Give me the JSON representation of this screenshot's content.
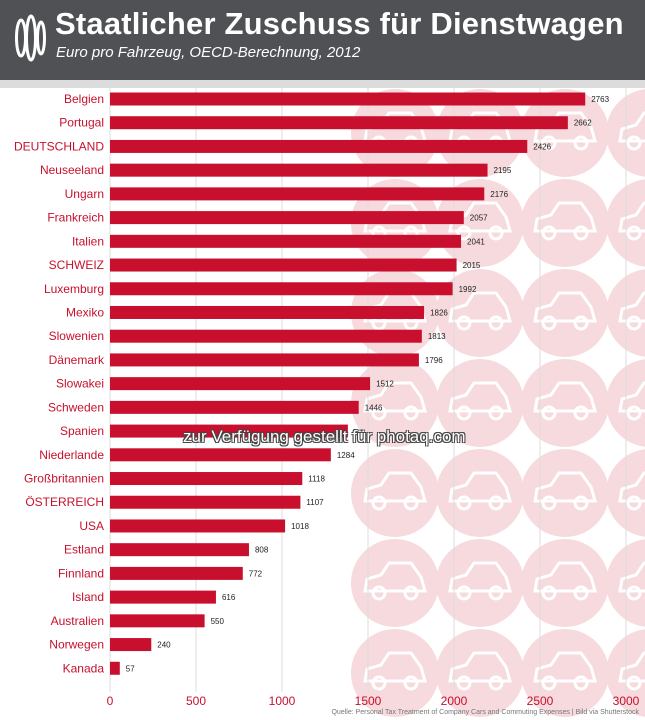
{
  "colors": {
    "header_bg": "#4f5154",
    "bar": "#c8102e",
    "label": "#c8102e",
    "background": "#ffffff"
  },
  "logo_icon": "oecd-logo-icon",
  "header": {
    "title": "Staatlicher Zuschuss für Dienstwagen",
    "subtitle": "Euro pro Fahrzeug, OECD-Berechnung, 2012"
  },
  "watermark": "zur Verfügung gestellt für photaq.com",
  "source": "Quelle: Personal Tax Treatment of Company Cars and Commuting Expenses | Bild via Shutterstock",
  "chart_data": {
    "type": "bar",
    "orientation": "horizontal",
    "title": "Staatlicher Zuschuss für Dienstwagen",
    "subtitle": "Euro pro Fahrzeug, OECD-Berechnung, 2012",
    "categories": [
      "Belgien",
      "Portugal",
      "DEUTSCHLAND",
      "Neuseeland",
      "Ungarn",
      "Frankreich",
      "Italien",
      "SCHWEIZ",
      "Luxemburg",
      "Mexiko",
      "Slowenien",
      "Dänemark",
      "Slowakei",
      "Schweden",
      "Spanien",
      "Niederlande",
      "Großbritannien",
      "ÖSTERREICH",
      "USA",
      "Estland",
      "Finnland",
      "Island",
      "Australien",
      "Norwegen",
      "Kanada"
    ],
    "values": [
      2763,
      2662,
      2426,
      2195,
      2176,
      2057,
      2041,
      2015,
      1992,
      1826,
      1813,
      1796,
      1512,
      1446,
      1383,
      1284,
      1118,
      1107,
      1018,
      808,
      772,
      616,
      550,
      240,
      57
    ],
    "value_labels": [
      "2763",
      "2662",
      "2426",
      "2195",
      "2176",
      "2057",
      "2041",
      "2015",
      "1992",
      "1826",
      "1813",
      "1796",
      "1512",
      "1446",
      "",
      "1284",
      "1118",
      "1107",
      "1018",
      "808",
      "772",
      "616",
      "550",
      "240",
      "57"
    ],
    "xlim": [
      0,
      3000
    ],
    "xticks": [
      0,
      500,
      1000,
      1500,
      2000,
      2500,
      3000
    ],
    "xtick_labels": [
      "0",
      "500",
      "1000",
      "1500",
      "2000",
      "2500",
      "3000"
    ],
    "grid": true,
    "legend": "none"
  }
}
